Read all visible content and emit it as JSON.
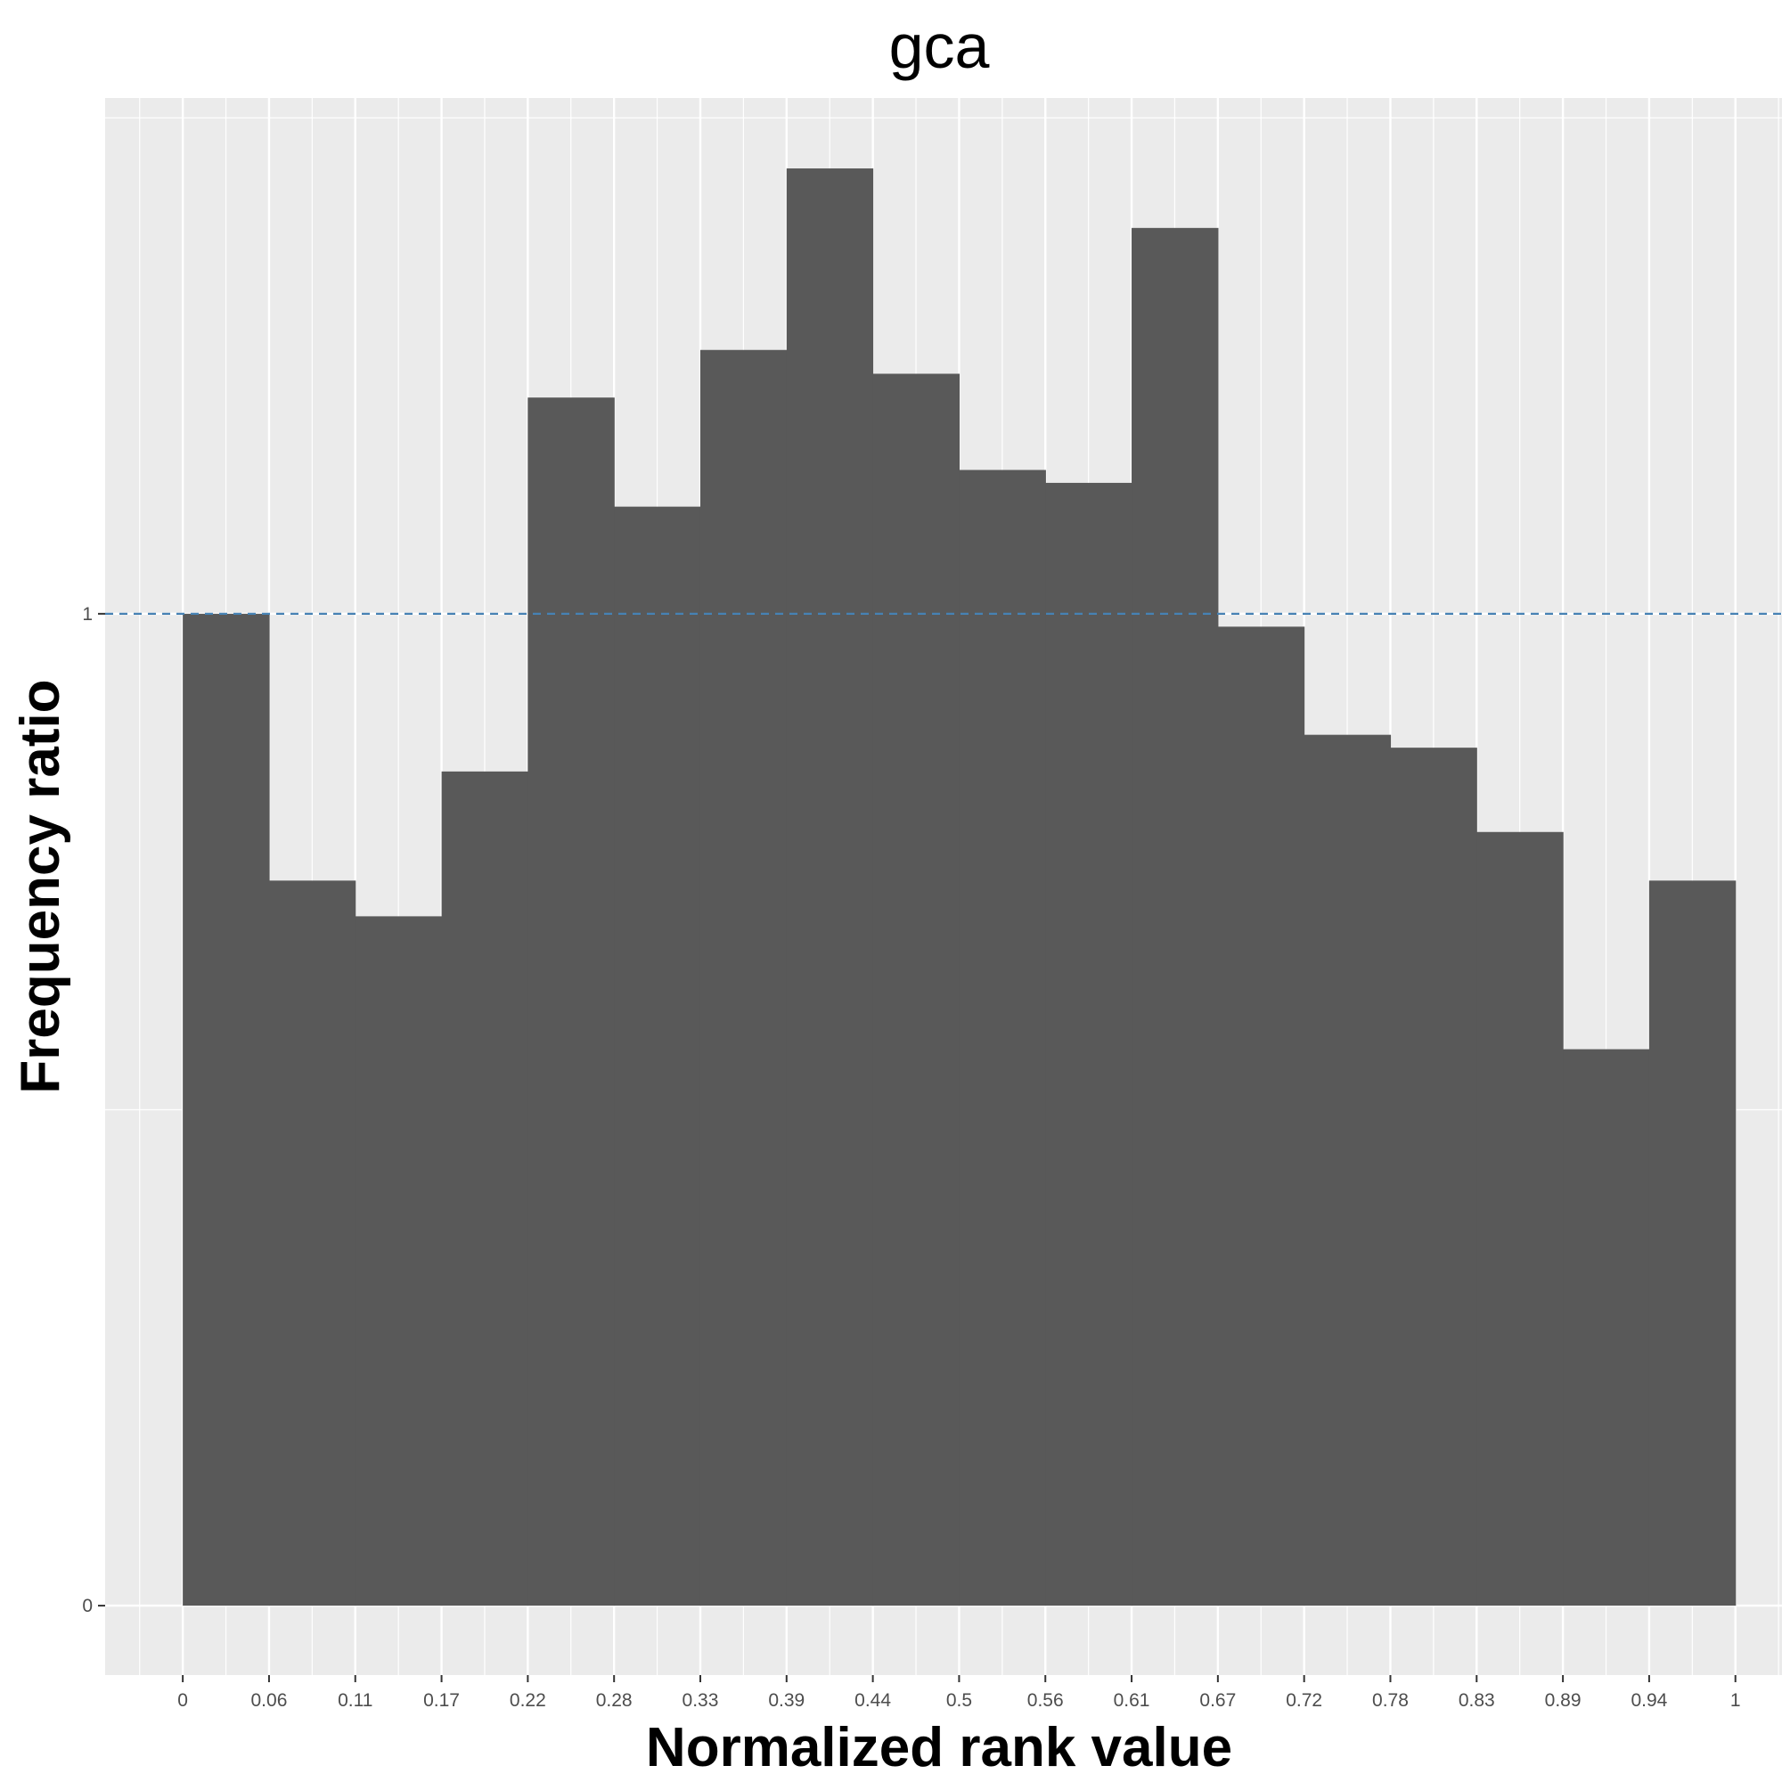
{
  "chart_data": {
    "type": "bar",
    "title": "gca",
    "xlabel": "Normalized rank value",
    "ylabel": "Frequency ratio",
    "x_ticks": [
      "0",
      "0.06",
      "0.11",
      "0.17",
      "0.22",
      "0.28",
      "0.33",
      "0.39",
      "0.44",
      "0.5",
      "0.56",
      "0.61",
      "0.67",
      "0.72",
      "0.78",
      "0.83",
      "0.89",
      "0.94",
      "1"
    ],
    "y_ticks": [
      "0",
      "1"
    ],
    "bins": [
      {
        "start": 0.0,
        "end": 0.0556,
        "value": 1.0
      },
      {
        "start": 0.0556,
        "end": 0.1111,
        "value": 0.731
      },
      {
        "start": 0.1111,
        "end": 0.1667,
        "value": 0.695
      },
      {
        "start": 0.1667,
        "end": 0.2222,
        "value": 0.841
      },
      {
        "start": 0.2222,
        "end": 0.2778,
        "value": 1.218
      },
      {
        "start": 0.2778,
        "end": 0.3333,
        "value": 1.108
      },
      {
        "start": 0.3333,
        "end": 0.3889,
        "value": 1.266
      },
      {
        "start": 0.3889,
        "end": 0.4444,
        "value": 1.449
      },
      {
        "start": 0.4444,
        "end": 0.5,
        "value": 1.242
      },
      {
        "start": 0.5,
        "end": 0.5556,
        "value": 1.145
      },
      {
        "start": 0.5556,
        "end": 0.6111,
        "value": 1.132
      },
      {
        "start": 0.6111,
        "end": 0.6667,
        "value": 1.389
      },
      {
        "start": 0.6667,
        "end": 0.7222,
        "value": 0.987
      },
      {
        "start": 0.7222,
        "end": 0.7778,
        "value": 0.878
      },
      {
        "start": 0.7778,
        "end": 0.8333,
        "value": 0.865
      },
      {
        "start": 0.8333,
        "end": 0.8889,
        "value": 0.78
      },
      {
        "start": 0.8889,
        "end": 0.9444,
        "value": 0.561
      },
      {
        "start": 0.9444,
        "end": 1.0,
        "value": 0.731
      }
    ],
    "reference_line": {
      "y": 1,
      "style": "dashed",
      "color": "#4682b4"
    },
    "xlim": [
      -0.05,
      1.03
    ],
    "ylim": [
      -0.07,
      1.52
    ],
    "grid": true,
    "colors": {
      "bar": "#595959",
      "panel": "#ebebeb",
      "grid": "#ffffff"
    }
  }
}
